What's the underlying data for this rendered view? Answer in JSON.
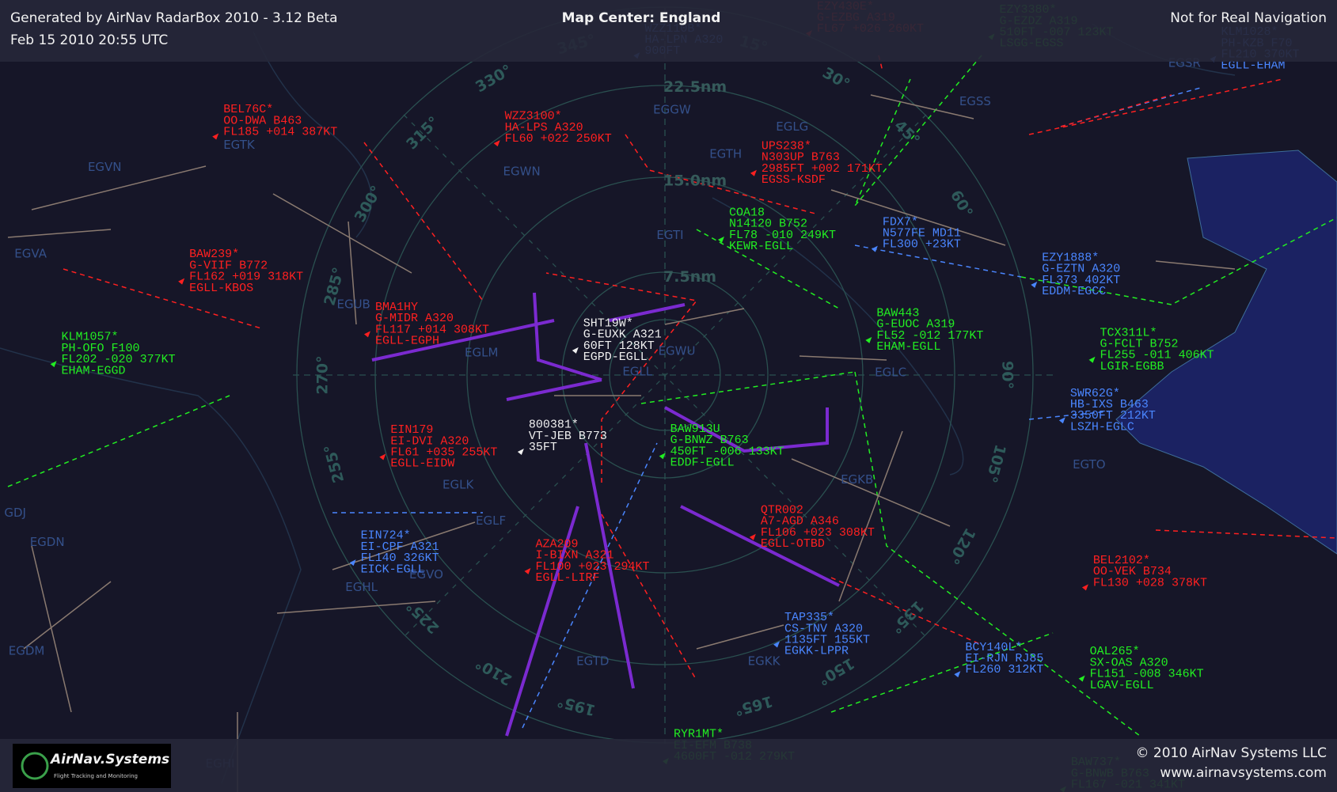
{
  "header": {
    "left": [
      "Generated by AirNav RadarBox 2010 - 3.12 Beta",
      "Feb 15 2010 20:55 UTC"
    ],
    "center": "Map Center: England",
    "right": "Not for Real Navigation"
  },
  "rings": [
    "7.5nm",
    "15.0nm",
    "22.5nm"
  ],
  "bearings": [
    "15°",
    "30°",
    "45°",
    "60°",
    "90°",
    "105°",
    "120°",
    "135°",
    "150°",
    "165°",
    "195°",
    "210°",
    "225°",
    "255°",
    "270°",
    "285°",
    "300°",
    "315°",
    "330°",
    "345°"
  ],
  "airports": [
    "EGSR",
    "EGSS",
    "EGGW",
    "EGLG",
    "EGTH",
    "EGTK",
    "EGVN",
    "EGWN",
    "EGTI",
    "EGVA",
    "EGUB",
    "EGLM",
    "EGWU",
    "EGLL",
    "EGLC",
    "EGTO",
    "EGKB",
    "EGLK",
    "EGLF",
    "EGDN",
    "EGHL",
    "EGVO",
    "EGDM",
    "EGTD",
    "EGKK",
    "EGHI",
    "GDJ"
  ],
  "aircraft": [
    {
      "color": "#ff2020",
      "lines": [
        "EZY430E*",
        "G-EZBG A319",
        "FL67 +026 260KT"
      ]
    },
    {
      "color": "#22ee22",
      "lines": [
        "EZY3380*",
        "G-EZDZ A319",
        "510FT -007 123KT",
        "LSGG-EGSS"
      ]
    },
    {
      "color": "#4a86ff",
      "lines": [
        "WZZ110B*",
        "HA-LPN A320",
        "900FT"
      ]
    },
    {
      "color": "#4a86ff",
      "lines": [
        "KLM1028*",
        "PH-KZB F70",
        "FL210 370KT",
        "EGLL-EHAM"
      ]
    },
    {
      "color": "#ff2020",
      "lines": [
        "BEL76C*",
        "OO-DWA B463",
        "FL185 +014 387KT"
      ]
    },
    {
      "color": "#ff2020",
      "lines": [
        "WZZ3100*",
        "HA-LPS A320",
        "FL60 +022 250KT"
      ]
    },
    {
      "color": "#ff2020",
      "lines": [
        "UPS238*",
        "N303UP B763",
        "2985FT +002 171KT",
        "EGSS-KSDF"
      ]
    },
    {
      "color": "#22ee22",
      "lines": [
        "COA18",
        "N14120 B752",
        "FL78 -010 249KT",
        "KEWR-EGLL"
      ]
    },
    {
      "color": "#4a86ff",
      "lines": [
        "FDX7*",
        "N577FE MD11",
        "FL300 +23KT"
      ]
    },
    {
      "color": "#ff2020",
      "lines": [
        "BAW239*",
        "G-VIIF B772",
        "FL162 +019 318KT",
        "EGLL-KBOS"
      ]
    },
    {
      "color": "#4a86ff",
      "lines": [
        "EZY1888*",
        "G-EZTN A320",
        "FL373 402KT",
        "EDDM-EGCC"
      ]
    },
    {
      "color": "#ff2020",
      "lines": [
        "BMA1HY",
        "G-MIDR A320",
        "FL117 +014 308KT",
        "EGLL-EGPH"
      ]
    },
    {
      "color": "#f0f0f0",
      "lines": [
        "SHT19W*",
        "G-EUXK A321",
        "60FT 128KT",
        "EGPD-EGLL"
      ]
    },
    {
      "color": "#22ee22",
      "lines": [
        "BAW443",
        "G-EUOC A319",
        "FL52 -012 177KT",
        "EHAM-EGLL"
      ]
    },
    {
      "color": "#22ee22",
      "lines": [
        "KLM1057*",
        "PH-OFO F100",
        "FL202 -020 377KT",
        "EHAM-EGGD"
      ]
    },
    {
      "color": "#22ee22",
      "lines": [
        "TCX311L*",
        "G-FCLT B752",
        "FL255 -011 406KT",
        "LGIR-EGBB"
      ]
    },
    {
      "color": "#4a86ff",
      "lines": [
        "SWR62G*",
        "HB-IXS B463",
        "3350FT 212KT",
        "LSZH-EGLC"
      ]
    },
    {
      "color": "#ff2020",
      "lines": [
        "EIN179",
        "EI-DVI A320",
        "FL61 +035 255KT",
        "EGLL-EIDW"
      ]
    },
    {
      "color": "#f0f0f0",
      "lines": [
        "800381*",
        "VT-JEB B773",
        "35FT"
      ]
    },
    {
      "color": "#22ee22",
      "lines": [
        "BAW913U",
        "G-BNWZ B763",
        "450FT -006 133KT",
        "EDDF-EGLL"
      ]
    },
    {
      "color": "#ff2020",
      "lines": [
        "QTR002",
        "A7-AGD A346",
        "FL106 +023 308KT",
        "EGLL-OTBD"
      ]
    },
    {
      "color": "#4a86ff",
      "lines": [
        "EIN724*",
        "EI-CPF A321",
        "FL140 326KT",
        "EICK-EGLL"
      ]
    },
    {
      "color": "#ff2020",
      "lines": [
        "AZA209",
        "I-BIXN A321",
        "FL100 +023 294KT",
        "EGLL-LIRF"
      ]
    },
    {
      "color": "#ff2020",
      "lines": [
        "BEL2102*",
        "OO-VEK B734",
        "FL130 +028 378KT"
      ]
    },
    {
      "color": "#4a86ff",
      "lines": [
        "TAP335*",
        "CS-TNV A320",
        "1135FT 155KT",
        "EGKK-LPPR"
      ]
    },
    {
      "color": "#4a86ff",
      "lines": [
        "BCY140L*",
        "EI-RJN RJ85",
        "FL260 312KT"
      ]
    },
    {
      "color": "#22ee22",
      "lines": [
        "OAL265*",
        "SX-OAS A320",
        "FL151 -008 346KT",
        "LGAV-EGLL"
      ]
    },
    {
      "color": "#22ee22",
      "lines": [
        "RYR1MT*",
        "EI-EFM B738",
        "4600FT -012 279KT"
      ]
    },
    {
      "color": "#22ee22",
      "lines": [
        "BAW737*",
        "G-BNWB B763",
        "FL167 -021 341KT"
      ]
    }
  ],
  "footer": {
    "logo": "AirNav.Systems",
    "tagline": "Flight Tracking and Monitoring",
    "copyright": "© 2010 AirNav Systems LLC",
    "url": "www.airnavsystems.com"
  }
}
